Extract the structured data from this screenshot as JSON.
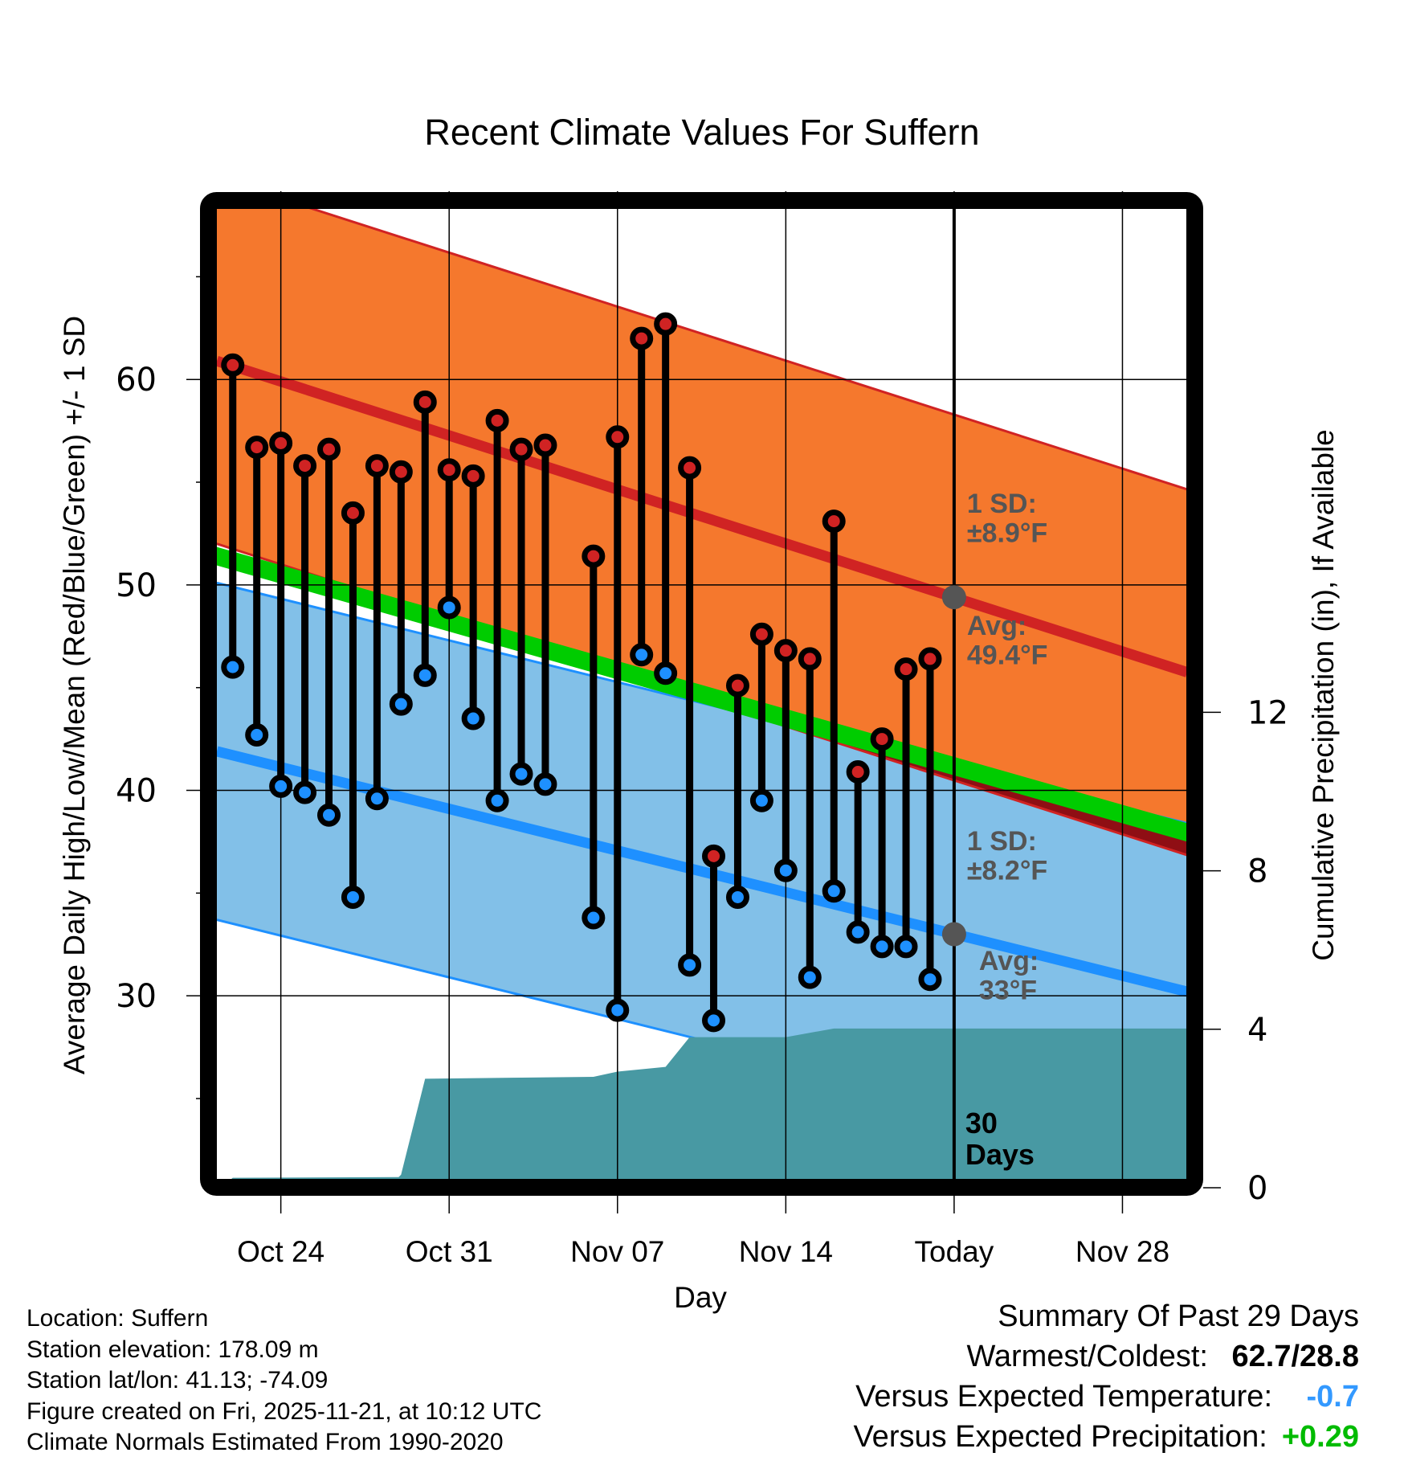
{
  "chart_data": {
    "type": "line",
    "title": "Recent Climate Values For Suffern",
    "xlabel": "Day",
    "ylabel": "Average Daily High/Low/Mean (Red/Blue/Green) +/- 1 SD",
    "y2label": "Cumulative Precipitation (in), If Available",
    "x_unit": "days relative to Oct 24",
    "xlim": [
      -2.66,
      37.69
    ],
    "ylim": [
      21.05,
      68.3
    ],
    "y2lim": [
      0,
      14.2
    ],
    "grid": true,
    "x_ticks": [
      {
        "day": 0,
        "label": "Oct 24"
      },
      {
        "day": 7,
        "label": "Oct 31"
      },
      {
        "day": 14,
        "label": "Nov 07"
      },
      {
        "day": 21,
        "label": "Nov 14"
      },
      {
        "day": 28,
        "label": "Today"
      },
      {
        "day": 35,
        "label": "Nov 28"
      }
    ],
    "y_ticks": [
      30,
      40,
      50,
      60
    ],
    "y_minor_ticks": [
      25,
      35,
      45,
      55,
      65
    ],
    "y2_ticks": [
      0,
      4,
      8,
      12
    ],
    "today_day": 28,
    "today_label_lines": [
      "30",
      "Days"
    ],
    "normals": {
      "avg_high": {
        "start": 60.9,
        "end": 45.75,
        "today": 49.4,
        "sd": 8.9,
        "color": "#d02323"
      },
      "avg_low": {
        "start": 41.9,
        "end": 30.2,
        "today": 33.0,
        "sd": 8.2,
        "color": "#1e90ff"
      },
      "avg_mean": {
        "start": 51.4,
        "end": 37.95,
        "half_width": 0.45,
        "color": "#00cc00"
      }
    },
    "annotations": {
      "high_sd": [
        "1 SD:",
        "±8.9°F"
      ],
      "high_avg": [
        "Avg:",
        "49.4°F"
      ],
      "low_sd": [
        "1 SD:",
        "±8.2°F"
      ],
      "low_avg": [
        "Avg:",
        "33°F"
      ]
    },
    "series": [
      {
        "name": "Daily High",
        "color": "#d02323",
        "points": [
          {
            "day": -2,
            "date": "Oct 22",
            "value": 60.7
          },
          {
            "day": -1,
            "date": "Oct 23",
            "value": 56.7
          },
          {
            "day": 0,
            "date": "Oct 24",
            "value": 56.9
          },
          {
            "day": 1,
            "date": "Oct 25",
            "value": 55.8
          },
          {
            "day": 2,
            "date": "Oct 26",
            "value": 56.6
          },
          {
            "day": 3,
            "date": "Oct 27",
            "value": 53.5
          },
          {
            "day": 4,
            "date": "Oct 28",
            "value": 55.8
          },
          {
            "day": 5,
            "date": "Oct 29",
            "value": 55.5
          },
          {
            "day": 6,
            "date": "Oct 30",
            "value": 58.9
          },
          {
            "day": 7,
            "date": "Oct 31",
            "value": 55.6
          },
          {
            "day": 8,
            "date": "Nov 01",
            "value": 55.3
          },
          {
            "day": 9,
            "date": "Nov 02",
            "value": 58.0
          },
          {
            "day": 10,
            "date": "Nov 03",
            "value": 56.6
          },
          {
            "day": 11,
            "date": "Nov 04",
            "value": 56.8
          },
          {
            "day": 13,
            "date": "Nov 06",
            "value": 51.4
          },
          {
            "day": 14,
            "date": "Nov 07",
            "value": 57.2
          },
          {
            "day": 15,
            "date": "Nov 08",
            "value": 62.0
          },
          {
            "day": 16,
            "date": "Nov 09",
            "value": 62.7
          },
          {
            "day": 17,
            "date": "Nov 10",
            "value": 55.7
          },
          {
            "day": 18,
            "date": "Nov 11",
            "value": 36.8
          },
          {
            "day": 19,
            "date": "Nov 12",
            "value": 45.1
          },
          {
            "day": 20,
            "date": "Nov 13",
            "value": 47.6
          },
          {
            "day": 21,
            "date": "Nov 14",
            "value": 46.8
          },
          {
            "day": 22,
            "date": "Nov 15",
            "value": 46.4
          },
          {
            "day": 23,
            "date": "Nov 16",
            "value": 53.1
          },
          {
            "day": 24,
            "date": "Nov 17",
            "value": 40.9
          },
          {
            "day": 25,
            "date": "Nov 18",
            "value": 42.5
          },
          {
            "day": 26,
            "date": "Nov 19",
            "value": 45.9
          },
          {
            "day": 27,
            "date": "Nov 20",
            "value": 46.4
          }
        ]
      },
      {
        "name": "Daily Low",
        "color": "#1e90ff",
        "points": [
          {
            "day": -2,
            "date": "Oct 22",
            "value": 46.0
          },
          {
            "day": -1,
            "date": "Oct 23",
            "value": 42.7
          },
          {
            "day": 0,
            "date": "Oct 24",
            "value": 40.2
          },
          {
            "day": 1,
            "date": "Oct 25",
            "value": 39.9
          },
          {
            "day": 2,
            "date": "Oct 26",
            "value": 38.8
          },
          {
            "day": 3,
            "date": "Oct 27",
            "value": 34.8
          },
          {
            "day": 4,
            "date": "Oct 28",
            "value": 39.6
          },
          {
            "day": 5,
            "date": "Oct 29",
            "value": 44.2
          },
          {
            "day": 6,
            "date": "Oct 30",
            "value": 45.6
          },
          {
            "day": 7,
            "date": "Oct 31",
            "value": 48.9
          },
          {
            "day": 8,
            "date": "Nov 01",
            "value": 43.5
          },
          {
            "day": 9,
            "date": "Nov 02",
            "value": 39.5
          },
          {
            "day": 10,
            "date": "Nov 03",
            "value": 40.8
          },
          {
            "day": 11,
            "date": "Nov 04",
            "value": 40.3
          },
          {
            "day": 13,
            "date": "Nov 06",
            "value": 33.8
          },
          {
            "day": 14,
            "date": "Nov 07",
            "value": 29.3
          },
          {
            "day": 15,
            "date": "Nov 08",
            "value": 46.6
          },
          {
            "day": 16,
            "date": "Nov 09",
            "value": 45.7
          },
          {
            "day": 17,
            "date": "Nov 10",
            "value": 31.5
          },
          {
            "day": 18,
            "date": "Nov 11",
            "value": 28.8
          },
          {
            "day": 19,
            "date": "Nov 12",
            "value": 34.8
          },
          {
            "day": 20,
            "date": "Nov 13",
            "value": 39.5
          },
          {
            "day": 21,
            "date": "Nov 14",
            "value": 36.1
          },
          {
            "day": 22,
            "date": "Nov 15",
            "value": 30.9
          },
          {
            "day": 23,
            "date": "Nov 16",
            "value": 35.1
          },
          {
            "day": 24,
            "date": "Nov 17",
            "value": 33.1
          },
          {
            "day": 25,
            "date": "Nov 18",
            "value": 32.4
          },
          {
            "day": 26,
            "date": "Nov 19",
            "value": 32.4
          },
          {
            "day": 27,
            "date": "Nov 20",
            "value": 30.8
          }
        ]
      },
      {
        "name": "Cumulative Precipitation (in)",
        "color": "#4899a3",
        "axis": "right",
        "points": [
          {
            "day": -2.5,
            "value": 0.0
          },
          {
            "day": -2.0,
            "value": 0.25
          },
          {
            "day": 4.9,
            "value": 0.27
          },
          {
            "day": 5.0,
            "value": 0.33
          },
          {
            "day": 6.0,
            "value": 2.75
          },
          {
            "day": 10.0,
            "value": 2.78
          },
          {
            "day": 13.0,
            "value": 2.8
          },
          {
            "day": 14.0,
            "value": 2.93
          },
          {
            "day": 16.0,
            "value": 3.05
          },
          {
            "day": 17.0,
            "value": 3.8
          },
          {
            "day": 21.0,
            "value": 3.8
          },
          {
            "day": 23.0,
            "value": 4.02
          },
          {
            "day": 28.0,
            "value": 4.02
          },
          {
            "day": 37.69,
            "value": 4.02
          }
        ]
      }
    ]
  },
  "info": {
    "location": "Location: Suffern",
    "elevation": "Station elevation: 178.09 m",
    "latlon": "Station lat/lon: 41.13; -74.09",
    "created": "Figure created on Fri, 2025-11-21, at 10:12 UTC",
    "normals": "Climate Normals Estimated From 1990-2020"
  },
  "summary": {
    "title": "Summary Of Past 29 Days",
    "warmest_coldest_label": "Warmest/Coldest:",
    "warmest_coldest_value": "62.7/28.8",
    "temp_label": "Versus Expected Temperature:",
    "temp_value": "-0.7",
    "temp_color": "#3399ff",
    "precip_label": "Versus Expected Precipitation:",
    "precip_value": "+0.29",
    "precip_color": "#00bb00"
  },
  "colors": {
    "high_band": "#f5782d",
    "low_band": "#82c0e8",
    "overlap_band": "#8f0e14",
    "precip_fill": "#4899a3",
    "annotation_text": "#555555",
    "today_marker": "#555555"
  }
}
